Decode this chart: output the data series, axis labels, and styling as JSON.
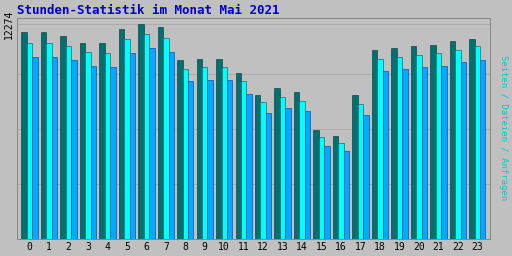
{
  "title": "Stunden-Statistik im Monat Mai 2021",
  "title_color": "#0000CC",
  "background_color": "#C0C0C0",
  "plot_bg_color": "#C0C0C0",
  "ylabel": "Seiten / Dateien / Anfragen",
  "ylabel_color": "#00CCCC",
  "ytick_label": "12274",
  "hours": [
    0,
    1,
    2,
    3,
    4,
    5,
    6,
    7,
    8,
    9,
    10,
    11,
    12,
    13,
    14,
    15,
    16,
    17,
    18,
    19,
    20,
    21,
    22,
    23
  ],
  "seiten": [
    11800,
    11800,
    11600,
    11200,
    11200,
    12000,
    12274,
    12100,
    10200,
    10300,
    10300,
    9500,
    8200,
    8600,
    8400,
    6200,
    5900,
    8200,
    10800,
    10900,
    11000,
    11100,
    11300,
    11400
  ],
  "dateien": [
    11200,
    11200,
    11000,
    10700,
    10600,
    11400,
    11700,
    11500,
    9700,
    9800,
    9800,
    9000,
    7800,
    8100,
    7900,
    5800,
    5500,
    7700,
    10300,
    10400,
    10500,
    10600,
    10800,
    11000
  ],
  "anfragen": [
    10400,
    10400,
    10200,
    9900,
    9800,
    10600,
    10900,
    10700,
    9000,
    9100,
    9100,
    8300,
    7200,
    7500,
    7300,
    5300,
    5000,
    7100,
    9600,
    9700,
    9800,
    9900,
    10100,
    10200
  ],
  "bar_width": 0.28,
  "color_seiten": "#007070",
  "color_dateien": "#00FFFF",
  "color_anfragen": "#00AAFF",
  "ylim": [
    0,
    12600
  ],
  "grid_color": "#AAAAAA",
  "ytick_pos": 12274
}
